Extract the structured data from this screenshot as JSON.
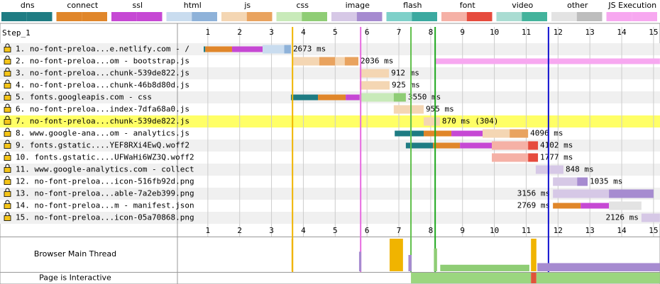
{
  "chart_data": {
    "type": "waterfall",
    "step": "Step_1",
    "xlim": [
      0,
      15.2
    ],
    "xticks": [
      1,
      2,
      3,
      4,
      5,
      6,
      7,
      8,
      9,
      10,
      11,
      12,
      13,
      14,
      15
    ],
    "legend": [
      {
        "name": "dns",
        "colors": [
          "#1f7c83",
          "#1f7c83"
        ]
      },
      {
        "name": "connect",
        "colors": [
          "#e0862a",
          "#e0862a"
        ]
      },
      {
        "name": "ssl",
        "colors": [
          "#c648d4",
          "#c648d4"
        ]
      },
      {
        "name": "html",
        "colors": [
          "#c9dcef",
          "#8eb2d9"
        ]
      },
      {
        "name": "js",
        "colors": [
          "#f4d6b3",
          "#e9a35f"
        ]
      },
      {
        "name": "css",
        "colors": [
          "#c8eab9",
          "#8fcd75"
        ]
      },
      {
        "name": "image",
        "colors": [
          "#d6c8e6",
          "#a68bd0"
        ]
      },
      {
        "name": "flash",
        "colors": [
          "#7ed0c9",
          "#3ba9a0"
        ]
      },
      {
        "name": "font",
        "colors": [
          "#f5b1a6",
          "#e64b3d"
        ]
      },
      {
        "name": "video",
        "colors": [
          "#a9dcd2",
          "#43b39c"
        ]
      },
      {
        "name": "other",
        "colors": [
          "#e3e3e3",
          "#bdbdbd"
        ]
      },
      {
        "name": "JS Execution",
        "colors": [
          "#f7a8f0",
          "#f7a8f0"
        ]
      }
    ],
    "rows": [
      {
        "label": "1. no-font-preloa...e.netlify.com - /",
        "kind": "html",
        "duration_label": "2673 ms",
        "segments": [
          {
            "phase": "dns",
            "start": 0.87,
            "end": 0.92
          },
          {
            "phase": "connect",
            "start": 0.92,
            "end": 1.76
          },
          {
            "phase": "ssl",
            "start": 1.76,
            "end": 2.72
          },
          {
            "phase": "ttfb",
            "start": 2.72,
            "end": 3.4
          },
          {
            "phase": "download",
            "start": 3.4,
            "end": 3.61
          }
        ]
      },
      {
        "label": "2. no-font-preloa...om - bootstrap.js",
        "kind": "js",
        "duration_label": "2036 ms",
        "segments": [
          {
            "phase": "ttfb",
            "start": 3.66,
            "end": 4.5
          },
          {
            "phase": "download",
            "start": 4.5,
            "end": 5.0
          },
          {
            "phase": "ttfb",
            "start": 5.0,
            "end": 5.3
          },
          {
            "phase": "download",
            "start": 5.3,
            "end": 5.73
          },
          {
            "phase": "js",
            "start": 8.14,
            "end": 15.2
          }
        ]
      },
      {
        "label": "3. no-font-preloa...chunk-539de822.js",
        "kind": "js",
        "duration_label": "912 ms",
        "segments": [
          {
            "phase": "ttfb",
            "start": 5.77,
            "end": 6.69
          }
        ]
      },
      {
        "label": "4. no-font-preloa...chunk-46b8d80d.js",
        "kind": "js",
        "duration_label": "925 ms",
        "segments": [
          {
            "phase": "ttfb",
            "start": 5.77,
            "end": 6.71
          }
        ]
      },
      {
        "label": "5. fonts.googleapis.com - css",
        "kind": "css",
        "duration_label": "3550 ms",
        "segments": [
          {
            "phase": "dns",
            "start": 3.61,
            "end": 4.46
          },
          {
            "phase": "connect",
            "start": 4.46,
            "end": 5.33
          },
          {
            "phase": "ssl",
            "start": 5.33,
            "end": 5.77
          },
          {
            "phase": "ttfb",
            "start": 5.77,
            "end": 6.84
          },
          {
            "phase": "download",
            "start": 6.84,
            "end": 7.22
          }
        ]
      },
      {
        "label": "6. no-font-preloa...index-7dfa68a0.js",
        "kind": "js",
        "duration_label": "955 ms",
        "segments": [
          {
            "phase": "ttfb",
            "start": 6.84,
            "end": 7.78
          }
        ]
      },
      {
        "label": "7. no-font-preloa...chunk-539de822.js",
        "kind": "js",
        "highlight": true,
        "duration_label": "870 ms (304)",
        "segments": [
          {
            "phase": "ttfb",
            "start": 7.78,
            "end": 8.29
          }
        ]
      },
      {
        "label": "8. www.google-ana...om - analytics.js",
        "kind": "js",
        "duration_label": "4096 ms",
        "segments": [
          {
            "phase": "dns",
            "start": 6.87,
            "end": 7.78
          },
          {
            "phase": "connect",
            "start": 7.78,
            "end": 8.65
          },
          {
            "phase": "ssl",
            "start": 8.65,
            "end": 9.63
          },
          {
            "phase": "ttfb",
            "start": 9.63,
            "end": 10.48
          },
          {
            "phase": "download",
            "start": 10.48,
            "end": 11.06
          }
        ]
      },
      {
        "label": "9. fonts.gstatic....YEF8RXi4EwQ.woff2",
        "kind": "font",
        "duration_label": "4102 ms",
        "segments": [
          {
            "phase": "dns",
            "start": 7.22,
            "end": 8.07
          },
          {
            "phase": "connect",
            "start": 8.07,
            "end": 8.92
          },
          {
            "phase": "ssl",
            "start": 8.92,
            "end": 9.92
          },
          {
            "phase": "ttfb",
            "start": 9.92,
            "end": 11.06
          },
          {
            "phase": "download",
            "start": 11.06,
            "end": 11.37
          }
        ]
      },
      {
        "label": "10. fonts.gstatic....UFWaHi6WZ3Q.woff2",
        "kind": "font",
        "duration_label": "1777 ms",
        "segments": [
          {
            "phase": "ttfb",
            "start": 9.92,
            "end": 11.06
          },
          {
            "phase": "download",
            "start": 11.06,
            "end": 11.37
          }
        ]
      },
      {
        "label": "11. www.google-analytics.com - collect",
        "kind": "image",
        "duration_label": "848 ms",
        "segments": [
          {
            "phase": "ttfb",
            "start": 11.3,
            "end": 12.17
          }
        ]
      },
      {
        "label": "12. no-font-preloa...icon-516fb92d.png",
        "kind": "image",
        "duration_label": "1035 ms",
        "segments": [
          {
            "phase": "ttfb",
            "start": 11.84,
            "end": 12.6
          },
          {
            "phase": "download",
            "start": 12.6,
            "end": 12.93
          }
        ]
      },
      {
        "label": "13. no-font-preloa...able-7a2eb399.png",
        "kind": "image",
        "duration_label": "3156 ms",
        "segments": [
          {
            "phase": "ttfb",
            "start": 11.84,
            "end": 13.6
          },
          {
            "phase": "download",
            "start": 13.6,
            "end": 15.0
          }
        ]
      },
      {
        "label": "14. no-font-preloa...m - manifest.json",
        "kind": "other",
        "duration_label": "2769 ms",
        "segments": [
          {
            "phase": "connect",
            "start": 11.84,
            "end": 12.71
          },
          {
            "phase": "ssl",
            "start": 12.71,
            "end": 13.6
          },
          {
            "phase": "ttfb",
            "start": 13.6,
            "end": 14.62
          }
        ]
      },
      {
        "label": "15. no-font-preloa...icon-05a70868.png",
        "kind": "image",
        "duration_label": "2126 ms",
        "segments": [
          {
            "phase": "ttfb",
            "start": 14.62,
            "end": 15.2
          }
        ]
      }
    ],
    "markers": [
      {
        "time": 3.66,
        "color": "#f0b400"
      },
      {
        "time": 5.8,
        "color": "#e76be0"
      },
      {
        "time": 7.38,
        "color": "#5fbf4a"
      },
      {
        "time": 8.14,
        "color": "#1ea81e"
      },
      {
        "time": 11.7,
        "color": "#1010d0"
      }
    ],
    "main_thread": {
      "label": "Browser Main Thread",
      "blocks": [
        {
          "start": 3.63,
          "end": 3.68,
          "color": "#f0b400",
          "level": 1
        },
        {
          "start": 5.75,
          "end": 5.82,
          "color": "#a68bd0",
          "level": 0.6
        },
        {
          "start": 6.71,
          "end": 7.13,
          "color": "#f0b400",
          "level": 1
        },
        {
          "start": 7.3,
          "end": 7.4,
          "color": "#a68bd0",
          "level": 0.5
        },
        {
          "start": 8.1,
          "end": 8.2,
          "color": "#8fcd75",
          "level": 0.7
        },
        {
          "start": 8.3,
          "end": 11.1,
          "color": "#8fcd75",
          "level": 0.2
        },
        {
          "start": 11.15,
          "end": 11.32,
          "color": "#f0b400",
          "level": 1
        },
        {
          "start": 11.35,
          "end": 15.2,
          "color": "#a68bd0",
          "level": 0.25
        }
      ]
    },
    "interactive": {
      "label": "Page is Interactive",
      "segments": [
        {
          "start": 7.38,
          "end": 11.15,
          "color": "#9bd67f"
        },
        {
          "start": 11.15,
          "end": 11.32,
          "color": "#e0543a"
        },
        {
          "start": 11.32,
          "end": 15.2,
          "color": "#9bd67f"
        }
      ]
    }
  }
}
